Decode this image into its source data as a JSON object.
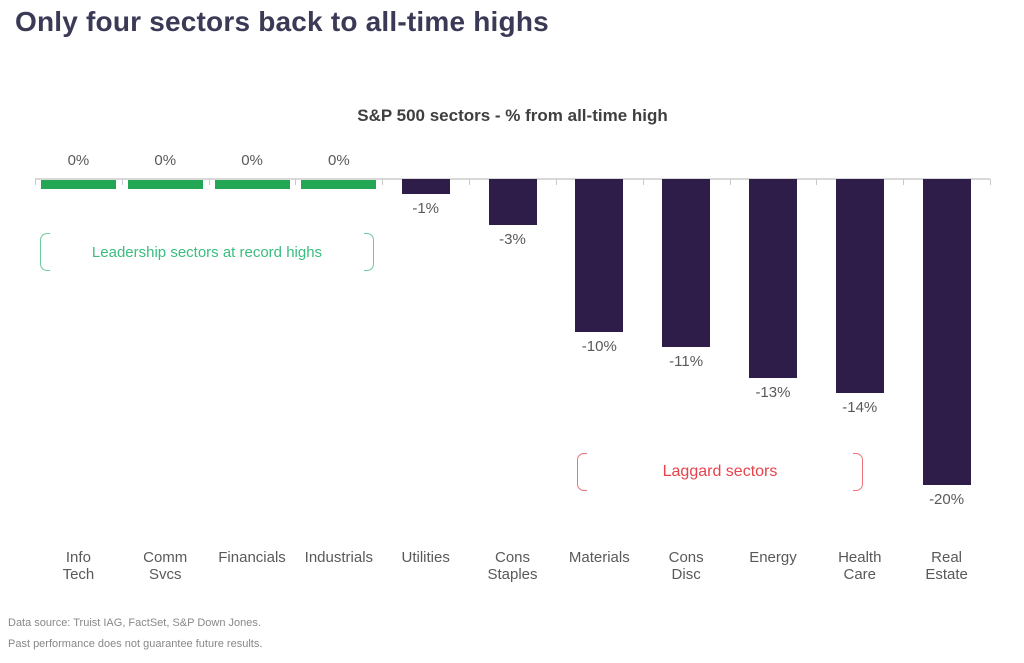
{
  "page": {
    "title": "Only four sectors back to all-time highs"
  },
  "chart_data": {
    "type": "bar",
    "title": "S&P 500 sectors - % from all-time high",
    "categories": [
      "Info Tech",
      "Comm Svcs",
      "Financials",
      "Industrials",
      "Utilities",
      "Cons Staples",
      "Materials",
      "Cons Disc",
      "Energy",
      "Health Care",
      "Real Estate"
    ],
    "category_lines": [
      [
        "Info",
        "Tech"
      ],
      [
        "Comm",
        "Svcs"
      ],
      [
        "Financials"
      ],
      [
        "Industrials"
      ],
      [
        "Utilities"
      ],
      [
        "Cons",
        "Staples"
      ],
      [
        "Materials"
      ],
      [
        "Cons",
        "Disc"
      ],
      [
        "Energy"
      ],
      [
        "Health",
        "Care"
      ],
      [
        "Real",
        "Estate"
      ]
    ],
    "values": [
      0,
      0,
      0,
      0,
      -1,
      -3,
      -10,
      -11,
      -13,
      -14,
      -20
    ],
    "value_labels": [
      "0%",
      "0%",
      "0%",
      "0%",
      "-1%",
      "-3%",
      "-10%",
      "-11%",
      "-13%",
      "-14%",
      "-20%"
    ],
    "unit": "%",
    "ylim": [
      -20,
      0
    ],
    "grid": false,
    "legend": "none",
    "positive_color": "#23a755",
    "negative_color": "#2e1c49",
    "axis_color": "#d8d8d8",
    "label_color": "#595959"
  },
  "annotations": {
    "leadership": "Leadership sectors at record highs",
    "leadership_color": "#3abd7e",
    "laggard": "Laggard sectors",
    "laggard_color": "#e8424c"
  },
  "footer": {
    "line1": "Data source: Truist IAG, FactSet, S&P Down Jones.",
    "line2": "Past performance does not guarantee future results."
  }
}
